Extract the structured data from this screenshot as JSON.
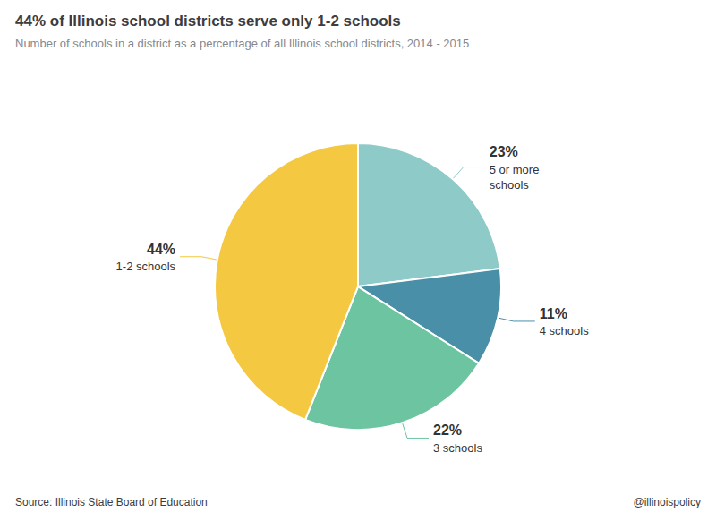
{
  "chart_data": {
    "type": "pie",
    "title": "44% of Illinois school districts serve only 1-2 schools",
    "subtitle": "Number of schools in a district as a percentage of all Illinois school districts, 2014 - 2015",
    "annotations": [
      "Source: Illinois State Board of Education",
      "@illinoispolicy"
    ],
    "categories": [
      "5 or more\nschools",
      "4 schools",
      "3 schools",
      "1-2 schools"
    ],
    "values": [
      23,
      11,
      22,
      44
    ],
    "value_labels": [
      "23%",
      "11%",
      "22%",
      "44%"
    ],
    "colors": [
      "#8ECAC8",
      "#4A8FA8",
      "#6DC4A0",
      "#F5C842"
    ],
    "data_labels": true
  }
}
